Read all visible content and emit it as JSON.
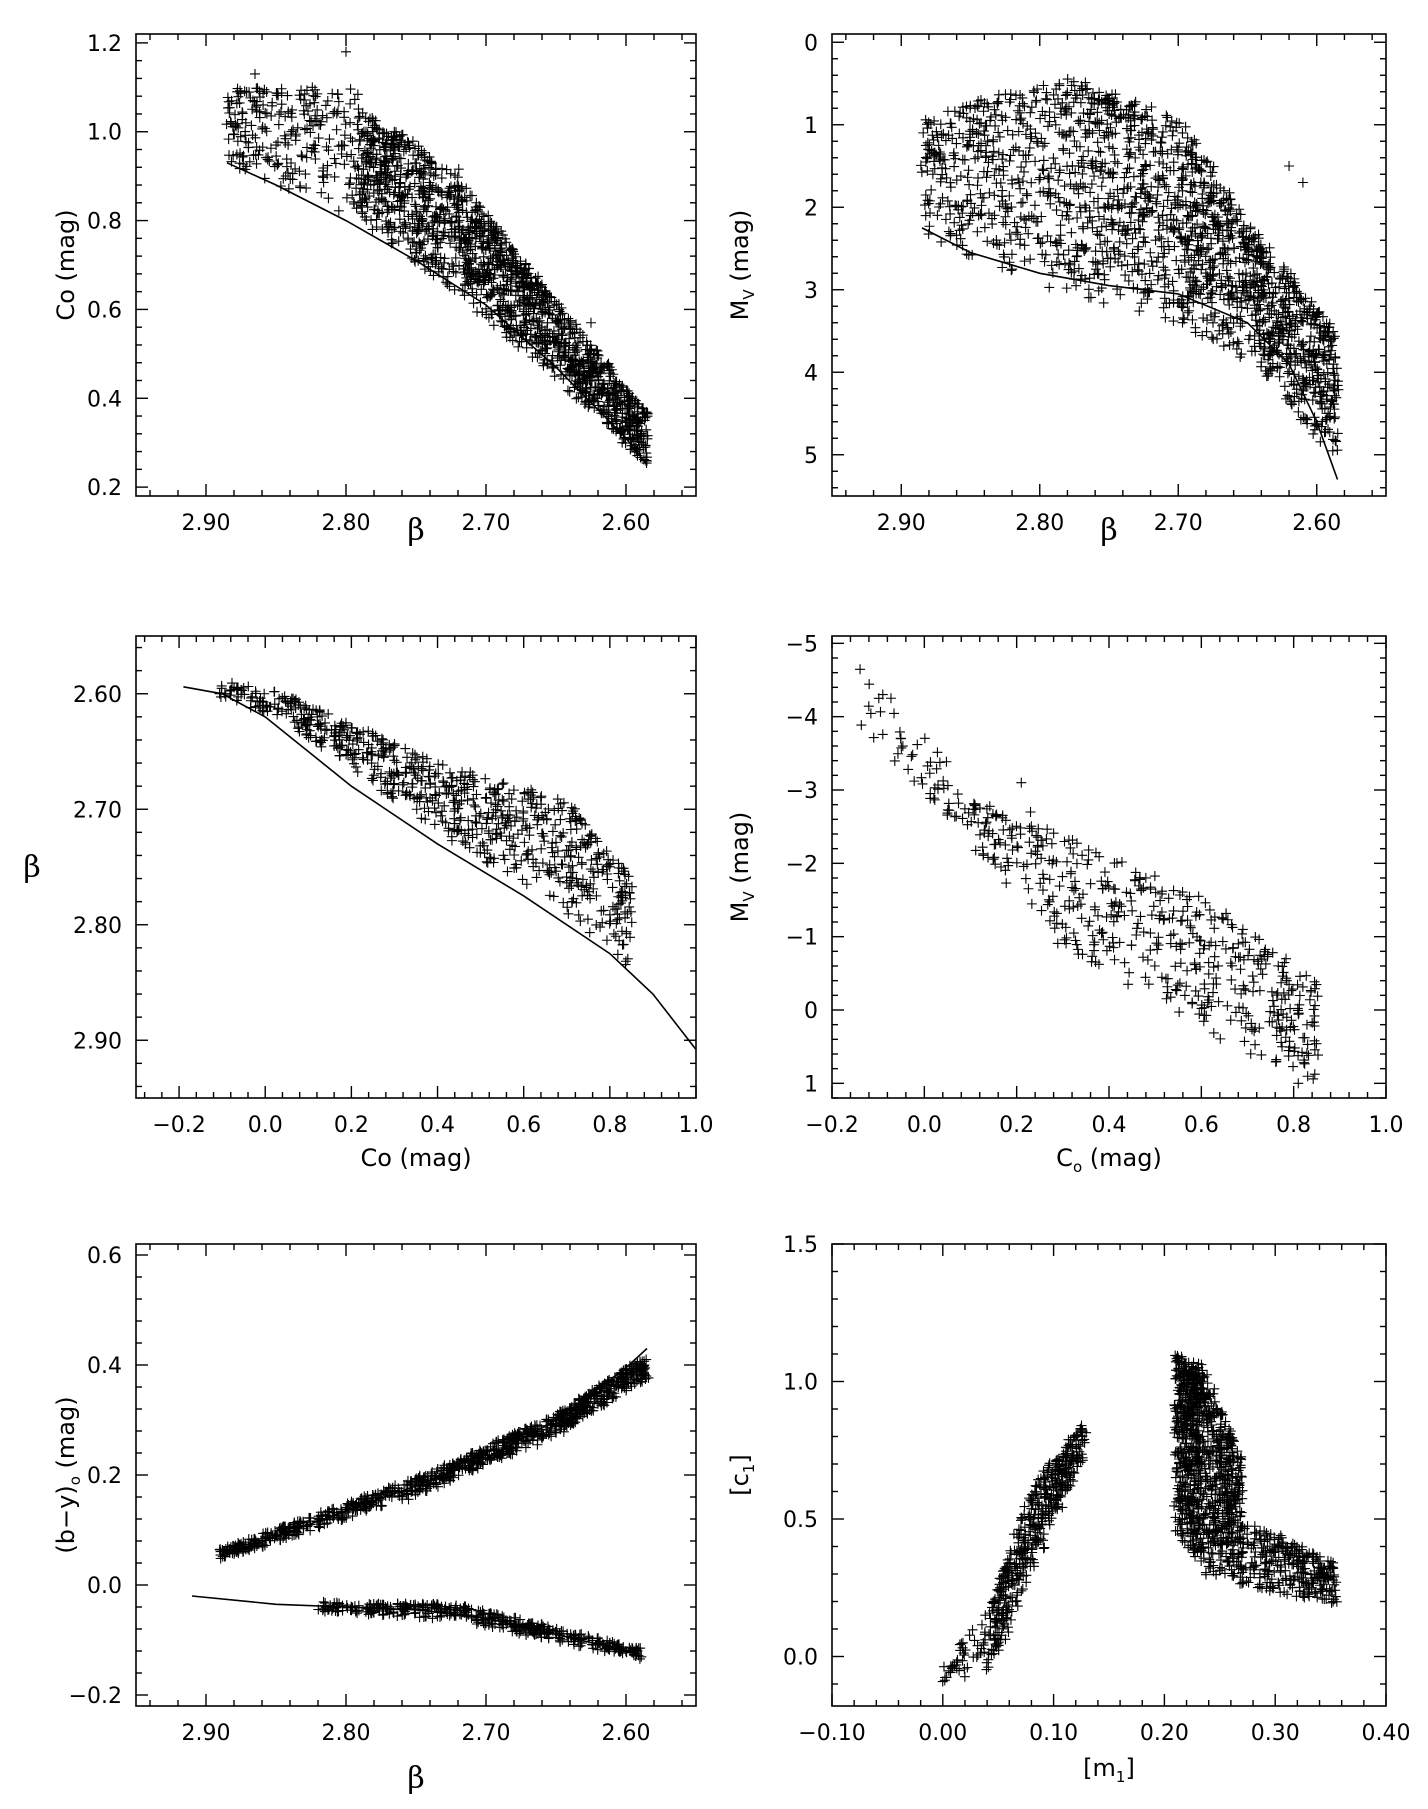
{
  "chart_data": [
    {
      "type": "scatter",
      "panel": "top-left",
      "xlabel": "β",
      "ylabel": "Co (mag)",
      "xlim": [
        2.95,
        2.55
      ],
      "ylim": [
        0.18,
        1.22
      ],
      "xticks": [
        2.9,
        2.8,
        2.7,
        2.6
      ],
      "xtick_labels": [
        "2.90",
        "2.80",
        "2.70",
        "2.60"
      ],
      "yticks": [
        0.2,
        0.4,
        0.6,
        0.8,
        1.0,
        1.2
      ],
      "ytick_labels": [
        "0.2",
        "0.4",
        "0.6",
        "0.8",
        "1.0",
        "1.2"
      ],
      "marker": "+",
      "point_bands": [
        {
          "x": [
            2.885,
            2.79
          ],
          "y_low": [
            0.93,
            0.8
          ],
          "y_high": [
            1.1,
            1.1
          ],
          "n": 260
        },
        {
          "x": [
            2.79,
            2.72
          ],
          "y_low": [
            0.8,
            0.63
          ],
          "y_high": [
            1.05,
            0.92
          ],
          "n": 500
        },
        {
          "x": [
            2.72,
            2.66
          ],
          "y_low": [
            0.63,
            0.47
          ],
          "y_high": [
            0.9,
            0.66
          ],
          "n": 500
        },
        {
          "x": [
            2.66,
            2.585
          ],
          "y_low": [
            0.47,
            0.25
          ],
          "y_high": [
            0.66,
            0.37
          ],
          "n": 520
        }
      ],
      "extra_points": [
        [
          2.8,
          1.18
        ],
        [
          2.865,
          1.13
        ],
        [
          2.625,
          0.57
        ]
      ],
      "curve": {
        "x": [
          2.885,
          2.85,
          2.8,
          2.75,
          2.7,
          2.65,
          2.6,
          2.585
        ],
        "y": [
          0.93,
          0.88,
          0.8,
          0.71,
          0.61,
          0.47,
          0.31,
          0.25
        ]
      }
    },
    {
      "type": "scatter",
      "panel": "top-right",
      "xlabel": "β",
      "ylabel": "Mv (mag)",
      "ylabel_main": "M",
      "ylabel_sub": "V",
      "ylabel_rest": " (mag)",
      "xlim": [
        2.95,
        2.55
      ],
      "ylim": [
        5.5,
        -0.1
      ],
      "xticks": [
        2.9,
        2.8,
        2.7,
        2.6
      ],
      "xtick_labels": [
        "2.90",
        "2.80",
        "2.70",
        "2.60"
      ],
      "yticks": [
        0,
        1,
        2,
        3,
        4,
        5
      ],
      "ytick_labels": [
        "0",
        "1",
        "2",
        "3",
        "4",
        "5"
      ],
      "marker": "+",
      "point_bands": [
        {
          "x": [
            2.885,
            2.78
          ],
          "y_low": [
            2.4,
            3.1
          ],
          "y_high": [
            0.9,
            0.4
          ],
          "n": 420
        },
        {
          "x": [
            2.78,
            2.7
          ],
          "y_low": [
            3.1,
            3.4
          ],
          "y_high": [
            0.4,
            0.9
          ],
          "n": 520
        },
        {
          "x": [
            2.7,
            2.64
          ],
          "y_low": [
            3.4,
            4.0
          ],
          "y_high": [
            0.9,
            2.4
          ],
          "n": 480
        },
        {
          "x": [
            2.64,
            2.585
          ],
          "y_low": [
            4.0,
            5.1
          ],
          "y_high": [
            2.4,
            3.5
          ],
          "n": 420
        }
      ],
      "extra_points": [
        [
          2.61,
          1.7
        ],
        [
          2.62,
          1.5
        ],
        [
          2.6,
          3.3
        ]
      ],
      "curve": {
        "x": [
          2.885,
          2.85,
          2.8,
          2.75,
          2.7,
          2.65,
          2.62,
          2.6,
          2.585
        ],
        "y": [
          2.25,
          2.55,
          2.8,
          2.95,
          3.05,
          3.4,
          3.9,
          4.6,
          5.3
        ]
      }
    },
    {
      "type": "scatter",
      "panel": "middle-left",
      "xlabel": "Co (mag)",
      "ylabel": "β",
      "xlim": [
        -0.3,
        1.0
      ],
      "ylim": [
        2.95,
        2.55
      ],
      "xticks": [
        -0.2,
        0.0,
        0.2,
        0.4,
        0.6,
        0.8,
        1.0
      ],
      "xtick_labels": [
        "−0.2",
        "0.0",
        "0.2",
        "0.4",
        "0.6",
        "0.8",
        "1.0"
      ],
      "yticks": [
        2.6,
        2.7,
        2.8,
        2.9
      ],
      "ytick_labels": [
        "2.60",
        "2.70",
        "2.80",
        "2.90"
      ],
      "marker": "+",
      "point_bands": [
        {
          "x": [
            -0.11,
            0.05
          ],
          "y_low": [
            2.605,
            2.625
          ],
          "y_high": [
            2.588,
            2.6
          ],
          "n": 60
        },
        {
          "x": [
            0.05,
            0.4
          ],
          "y_low": [
            2.625,
            2.72
          ],
          "y_high": [
            2.6,
            2.66
          ],
          "n": 260
        },
        {
          "x": [
            0.4,
            0.7
          ],
          "y_low": [
            2.72,
            2.79
          ],
          "y_high": [
            2.66,
            2.69
          ],
          "n": 260
        },
        {
          "x": [
            0.7,
            0.85
          ],
          "y_low": [
            2.79,
            2.84
          ],
          "y_high": [
            2.69,
            2.76
          ],
          "n": 160
        }
      ],
      "extra_points": [
        [
          -0.05,
          2.595
        ],
        [
          0.22,
          2.635
        ],
        [
          0.61,
          2.685
        ]
      ],
      "curve": {
        "x": [
          -0.19,
          -0.1,
          0.0,
          0.2,
          0.4,
          0.6,
          0.8,
          0.9,
          1.0
        ],
        "y": [
          2.594,
          2.6,
          2.62,
          2.68,
          2.73,
          2.775,
          2.825,
          2.86,
          2.908
        ]
      }
    },
    {
      "type": "scatter",
      "panel": "middle-right",
      "xlabel": "Co (mag)",
      "xlabel_main": "C",
      "xlabel_sub": "o",
      "xlabel_rest": " (mag)",
      "ylabel": "Mv (mag)",
      "ylabel_main": "M",
      "ylabel_sub": "V",
      "ylabel_rest": " (mag)",
      "xlim": [
        -0.2,
        1.0
      ],
      "ylim": [
        1.2,
        -5.1
      ],
      "xticks": [
        -0.2,
        0.0,
        0.2,
        0.4,
        0.6,
        0.8,
        1.0
      ],
      "xtick_labels": [
        "−0.2",
        "0.0",
        "0.2",
        "0.4",
        "0.6",
        "0.8",
        "1.0"
      ],
      "yticks": [
        -5,
        -4,
        -3,
        -2,
        -1,
        0,
        1
      ],
      "ytick_labels": [
        "−5",
        "−4",
        "−3",
        "−2",
        "−1",
        "0",
        "1"
      ],
      "marker": "+",
      "point_bands": [
        {
          "x": [
            -0.14,
            0.05
          ],
          "y_low": [
            -3.8,
            -2.6
          ],
          "y_high": [
            -4.7,
            -3.4
          ],
          "n": 45
        },
        {
          "x": [
            0.05,
            0.3
          ],
          "y_low": [
            -2.6,
            -0.8
          ],
          "y_high": [
            -3.0,
            -2.4
          ],
          "n": 120
        },
        {
          "x": [
            0.3,
            0.6
          ],
          "y_low": [
            -0.8,
            0.3
          ],
          "y_high": [
            -2.4,
            -1.6
          ],
          "n": 200
        },
        {
          "x": [
            0.6,
            0.85
          ],
          "y_low": [
            0.3,
            1.0
          ],
          "y_high": [
            -1.6,
            -0.4
          ],
          "n": 200
        }
      ],
      "extra_points": [
        [
          0.21,
          -3.1
        ],
        [
          0.23,
          -2.7
        ],
        [
          0.81,
          1.0
        ]
      ]
    },
    {
      "type": "scatter",
      "panel": "bottom-left",
      "xlabel": "β",
      "ylabel": "(b−y)o (mag)",
      "ylabel_main": "(b−y)",
      "ylabel_sub": "o",
      "ylabel_rest": " (mag)",
      "xlim": [
        2.95,
        2.55
      ],
      "ylim": [
        -0.22,
        0.62
      ],
      "xticks": [
        2.9,
        2.8,
        2.7,
        2.6
      ],
      "xtick_labels": [
        "2.90",
        "2.80",
        "2.70",
        "2.60"
      ],
      "yticks": [
        -0.2,
        0.0,
        0.2,
        0.4,
        0.6
      ],
      "ytick_labels": [
        "−0.2",
        "0.0",
        "0.2",
        "0.4",
        "0.6"
      ],
      "marker": "+",
      "point_bands": [
        {
          "x": [
            2.89,
            2.75
          ],
          "y_low": [
            0.045,
            0.16
          ],
          "y_high": [
            0.065,
            0.195
          ],
          "n": 320
        },
        {
          "x": [
            2.75,
            2.65
          ],
          "y_low": [
            0.16,
            0.27
          ],
          "y_high": [
            0.195,
            0.31
          ],
          "n": 320
        },
        {
          "x": [
            2.65,
            2.585
          ],
          "y_low": [
            0.27,
            0.375
          ],
          "y_high": [
            0.31,
            0.42
          ],
          "n": 300
        },
        {
          "x": [
            2.82,
            2.72
          ],
          "y_low": [
            -0.048,
            -0.065
          ],
          "y_high": [
            -0.03,
            -0.035
          ],
          "n": 160
        },
        {
          "x": [
            2.72,
            2.59
          ],
          "y_low": [
            -0.065,
            -0.135
          ],
          "y_high": [
            -0.035,
            -0.115
          ],
          "n": 260
        }
      ],
      "curve": {
        "x": [
          2.885,
          2.8,
          2.75,
          2.7,
          2.65,
          2.6,
          2.585
        ],
        "y": [
          0.055,
          0.135,
          0.18,
          0.23,
          0.3,
          0.395,
          0.43
        ]
      },
      "curve2": {
        "x": [
          2.91,
          2.85,
          2.8,
          2.75,
          2.7,
          2.65,
          2.59
        ],
        "y": [
          -0.02,
          -0.035,
          -0.04,
          -0.045,
          -0.06,
          -0.09,
          -0.125
        ]
      }
    },
    {
      "type": "scatter",
      "panel": "bottom-right",
      "xlabel": "[m1]",
      "xlabel_main": "[m",
      "xlabel_sub": "1",
      "xlabel_rest": "]",
      "ylabel": "[c1]",
      "ylabel_main": "[c",
      "ylabel_sub": "1",
      "ylabel_rest": "]",
      "xlim": [
        -0.1,
        0.4
      ],
      "ylim": [
        -0.18,
        1.5
      ],
      "xticks": [
        -0.1,
        0.0,
        0.1,
        0.2,
        0.3,
        0.4
      ],
      "xtick_labels": [
        "−0.10",
        "0.00",
        "0.10",
        "0.20",
        "0.30",
        "0.40"
      ],
      "yticks": [
        0.0,
        0.5,
        1.0,
        1.5
      ],
      "ytick_labels": [
        "0.0",
        "0.5",
        "1.0",
        "1.5"
      ],
      "marker": "+",
      "point_bands": [
        {
          "x": [
            0.0,
            0.045
          ],
          "y_low": [
            -0.1,
            -0.05
          ],
          "y_high": [
            -0.03,
            0.2
          ],
          "n": 60
        },
        {
          "x": [
            0.045,
            0.08
          ],
          "y_low": [
            -0.05,
            0.3
          ],
          "y_high": [
            0.2,
            0.62
          ],
          "n": 200
        },
        {
          "x": [
            0.08,
            0.13
          ],
          "y_low": [
            0.3,
            0.74
          ],
          "y_high": [
            0.62,
            0.86
          ],
          "n": 250
        },
        {
          "x": [
            0.21,
            0.235
          ],
          "y_low": [
            0.45,
            0.3
          ],
          "y_high": [
            1.1,
            1.06
          ],
          "n": 520
        },
        {
          "x": [
            0.235,
            0.27
          ],
          "y_low": [
            0.3,
            0.25
          ],
          "y_high": [
            1.06,
            0.72
          ],
          "n": 460
        },
        {
          "x": [
            0.27,
            0.355
          ],
          "y_low": [
            0.25,
            0.19
          ],
          "y_high": [
            0.5,
            0.34
          ],
          "n": 280
        }
      ],
      "extra_points": [
        [
          0.305,
          0.44
        ],
        [
          0.355,
          0.27
        ]
      ]
    }
  ]
}
